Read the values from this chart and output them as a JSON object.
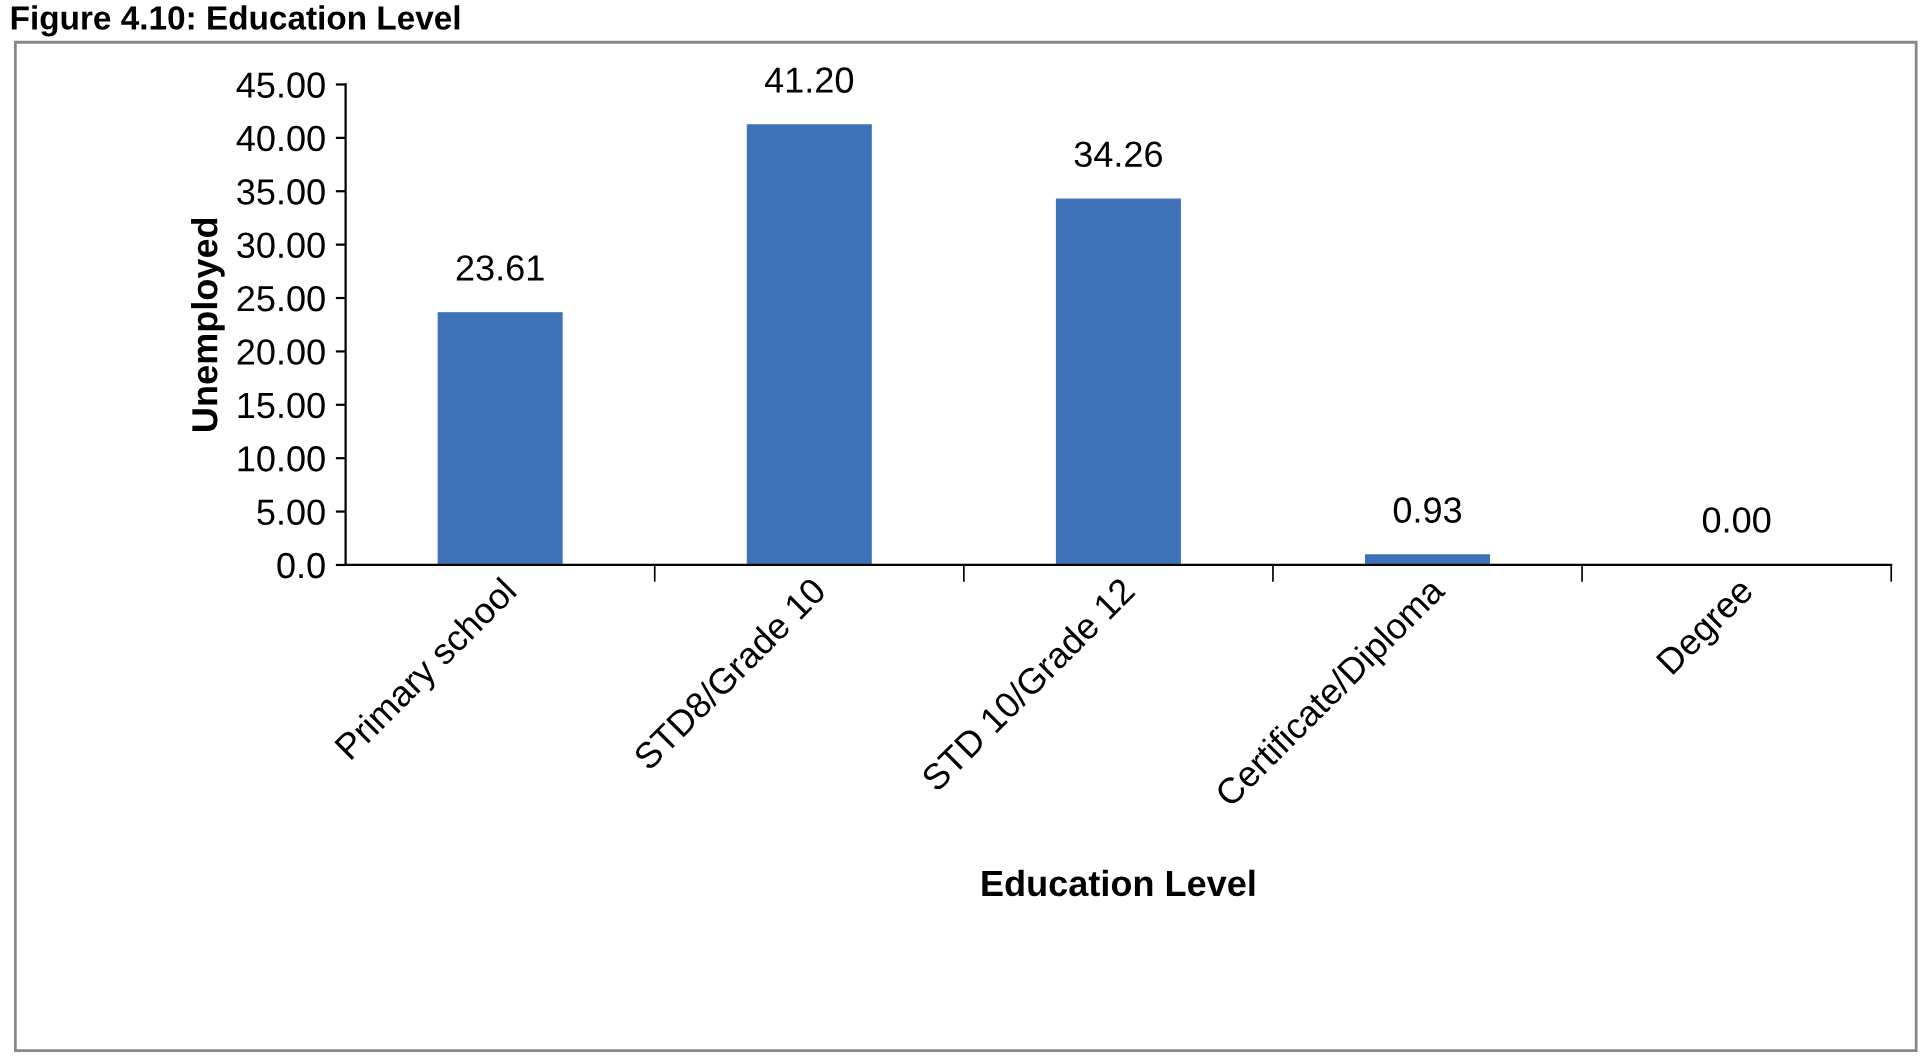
{
  "chart_data": {
    "type": "bar",
    "title": "Figure 4.10: Education Level",
    "xlabel": "Education Level",
    "ylabel": "Unemployed",
    "categories": [
      "Primary school",
      "STD8/Grade 10",
      "STD 10/Grade 12",
      "Certificate/Diploma",
      "Degree"
    ],
    "values": [
      23.61,
      41.2,
      34.26,
      0.93,
      0.0
    ],
    "value_labels": [
      "23.61",
      "41.20",
      "34.26",
      "0.93",
      "0.00"
    ],
    "color": "#3f72b8",
    "ylim": [
      0,
      45
    ],
    "yticks": [
      {
        "value": 0,
        "label": "0.0"
      },
      {
        "value": 5,
        "label": "5.00"
      },
      {
        "value": 10,
        "label": "10.00"
      },
      {
        "value": 15,
        "label": "15.00"
      },
      {
        "value": 20,
        "label": "20.00"
      },
      {
        "value": 25,
        "label": "25.00"
      },
      {
        "value": 30,
        "label": "30.00"
      },
      {
        "value": 35,
        "label": "35.00"
      },
      {
        "value": 40,
        "label": "40.00"
      },
      {
        "value": 45,
        "label": "45.00"
      }
    ],
    "grid": false,
    "legend": false
  }
}
